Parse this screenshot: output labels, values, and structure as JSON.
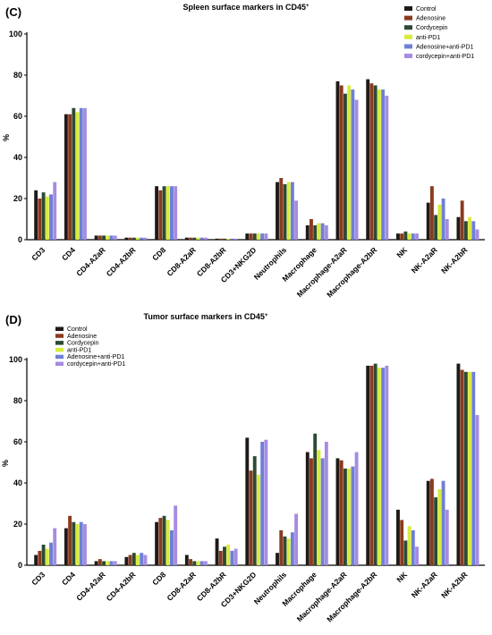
{
  "colors": {
    "Control": "#1f1a17",
    "Adenosine": "#8b3a1e",
    "Cordycepin": "#2e4a34",
    "anti-PD1": "#d8ec3c",
    "Adenosine+anti-PD1": "#6f7fd6",
    "cordycepin+anti-PD1": "#a58ce0"
  },
  "chart_data": [
    {
      "panel": "(C)",
      "type": "bar",
      "title": "Spleen surface markers in CD45",
      "title_sup": "+",
      "ylabel": "%",
      "ylim": [
        0,
        100
      ],
      "yticks": [
        0,
        20,
        40,
        60,
        80,
        100
      ],
      "legend_position": "top-right",
      "categories": [
        "CD3",
        "CD4",
        "CD4-A2aR",
        "CD4-A2bR",
        "CD8",
        "CD8-A2aR",
        "CD8-A2bR",
        "CD3+NKG2D",
        "Neutrophils",
        "Macrophage",
        "Macrophage-A2aR",
        "Macrophage-A2bR",
        "NK",
        "NK-A2aR",
        "NK-A2bR"
      ],
      "series": [
        {
          "name": "Control",
          "values": [
            24,
            61,
            2,
            1,
            26,
            1,
            0.5,
            3,
            28,
            7,
            77,
            78,
            3,
            18,
            11
          ]
        },
        {
          "name": "Adenosine",
          "values": [
            20,
            61,
            2,
            1,
            24,
            1,
            0.5,
            3,
            30,
            10,
            75,
            76,
            3,
            26,
            19
          ]
        },
        {
          "name": "Cordycepin",
          "values": [
            23,
            64,
            2,
            1,
            26,
            1,
            0.5,
            3,
            27,
            7,
            71,
            75,
            4,
            12,
            9
          ]
        },
        {
          "name": "anti-PD1",
          "values": [
            21,
            62,
            2,
            1,
            26,
            1,
            0.5,
            3,
            28,
            8,
            75,
            73,
            3,
            17,
            11
          ]
        },
        {
          "name": "Adenosine+anti-PD1",
          "values": [
            22,
            64,
            2,
            1,
            26,
            1,
            0.5,
            3,
            28,
            8,
            73,
            73,
            3,
            20,
            9
          ]
        },
        {
          "name": "cordycepin+anti-PD1",
          "values": [
            28,
            64,
            2,
            1,
            26,
            1,
            0.5,
            3,
            19,
            7,
            68,
            70,
            3,
            10,
            5
          ]
        }
      ]
    },
    {
      "panel": "(D)",
      "type": "bar",
      "title": "Tumor surface markers in CD45",
      "title_sup": "+",
      "ylabel": "%",
      "ylim": [
        0,
        100
      ],
      "yticks": [
        0,
        20,
        40,
        60,
        80,
        100
      ],
      "legend_position": "top-left",
      "categories": [
        "CD3",
        "CD4",
        "CD4-A2aR",
        "CD4-A2bR",
        "CD8",
        "CD8-A2aR",
        "CD8-A2bR",
        "CD3+NKG2D",
        "Neutrophils",
        "Macrophage",
        "Macrophage-A2aR",
        "Macrophage-A2bR",
        "NK",
        "NK-A2aR",
        "NK-A2bR"
      ],
      "series": [
        {
          "name": "Control",
          "values": [
            5,
            18,
            2,
            4,
            21,
            5,
            13,
            62,
            6,
            55,
            52,
            97,
            27,
            41,
            98
          ]
        },
        {
          "name": "Adenosine",
          "values": [
            7,
            24,
            3,
            5,
            23,
            3,
            7,
            46,
            17,
            52,
            51,
            97,
            22,
            42,
            95
          ]
        },
        {
          "name": "Cordycepin",
          "values": [
            10,
            21,
            2,
            6,
            24,
            2,
            9,
            53,
            14,
            64,
            47,
            98,
            12,
            33,
            94
          ]
        },
        {
          "name": "anti-PD1",
          "values": [
            8,
            20,
            2,
            5,
            22,
            2,
            10,
            44,
            13,
            56,
            47,
            96,
            19,
            37,
            94
          ]
        },
        {
          "name": "Adenosine+anti-PD1",
          "values": [
            11,
            21,
            2,
            6,
            17,
            2,
            7,
            60,
            16,
            52,
            48,
            96,
            17,
            41,
            94
          ]
        },
        {
          "name": "cordycepin+anti-PD1",
          "values": [
            18,
            20,
            2,
            5,
            29,
            2,
            8,
            61,
            25,
            60,
            55,
            97,
            9,
            27,
            73
          ]
        }
      ]
    }
  ]
}
